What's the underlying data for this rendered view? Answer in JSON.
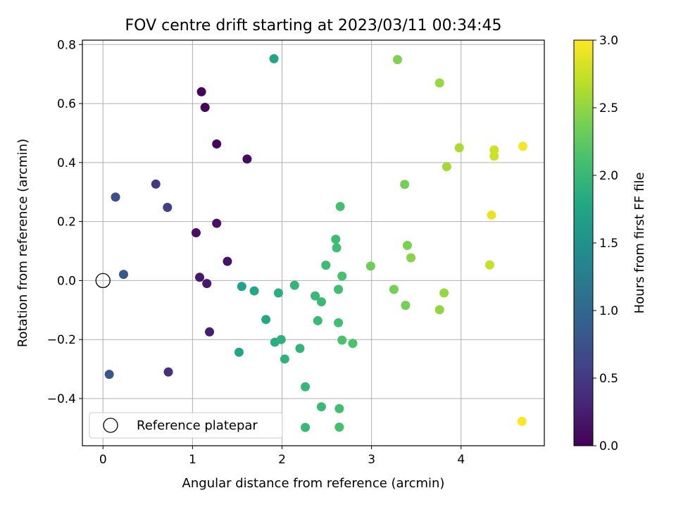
{
  "chart_data": {
    "type": "scatter",
    "title": "FOV centre drift starting at 2023/03/11 00:34:45",
    "xlabel": "Angular distance from reference (arcmin)",
    "ylabel": "Rotation from reference (arcmin)",
    "xlim": [
      -0.23,
      4.93
    ],
    "ylim": [
      -0.56,
      0.815
    ],
    "xticks": [
      0,
      1,
      2,
      3,
      4
    ],
    "xtick_labels": [
      "0",
      "1",
      "2",
      "3",
      "4"
    ],
    "yticks": [
      -0.4,
      -0.2,
      0.0,
      0.2,
      0.4,
      0.6,
      0.8
    ],
    "ytick_labels": [
      "−0.4",
      "−0.2",
      "0.0",
      "0.2",
      "0.4",
      "0.6",
      "0.8"
    ],
    "grid": true,
    "colormap": "viridis",
    "colorbar": {
      "label": "Hours from first FF file",
      "range": [
        0.0,
        3.0
      ],
      "ticks": [
        0.0,
        0.5,
        1.0,
        1.5,
        2.0,
        2.5,
        3.0
      ],
      "tick_labels": [
        "0.0",
        "0.5",
        "1.0",
        "1.5",
        "2.0",
        "2.5",
        "3.0"
      ]
    },
    "legend": {
      "location": "lower-left",
      "entries": [
        {
          "label": "Reference platepar",
          "marker": "open-circle"
        }
      ]
    },
    "reference_point": {
      "x": 0.0,
      "y": 0.0
    },
    "points": [
      {
        "x": 1.1,
        "y": 0.64,
        "hours": 0.02
      },
      {
        "x": 1.14,
        "y": 0.587,
        "hours": 0.04
      },
      {
        "x": 1.27,
        "y": 0.463,
        "hours": 0.07
      },
      {
        "x": 1.61,
        "y": 0.412,
        "hours": 0.1
      },
      {
        "x": 1.04,
        "y": 0.162,
        "hours": 0.12
      },
      {
        "x": 1.27,
        "y": 0.194,
        "hours": 0.14
      },
      {
        "x": 1.39,
        "y": 0.065,
        "hours": 0.16
      },
      {
        "x": 1.08,
        "y": 0.011,
        "hours": 0.19
      },
      {
        "x": 1.16,
        "y": -0.01,
        "hours": 0.21
      },
      {
        "x": 1.19,
        "y": -0.174,
        "hours": 0.24
      },
      {
        "x": 0.73,
        "y": -0.31,
        "hours": 0.4
      },
      {
        "x": 0.59,
        "y": 0.327,
        "hours": 0.5
      },
      {
        "x": 0.72,
        "y": 0.248,
        "hours": 0.55
      },
      {
        "x": 0.14,
        "y": 0.283,
        "hours": 0.72
      },
      {
        "x": 0.23,
        "y": 0.021,
        "hours": 0.82
      },
      {
        "x": 0.07,
        "y": -0.318,
        "hours": 0.8
      },
      {
        "x": 1.91,
        "y": 0.752,
        "hours": 1.75
      },
      {
        "x": 1.55,
        "y": -0.02,
        "hours": 1.72
      },
      {
        "x": 1.69,
        "y": -0.035,
        "hours": 1.78
      },
      {
        "x": 1.52,
        "y": -0.243,
        "hours": 1.76
      },
      {
        "x": 1.82,
        "y": -0.132,
        "hours": 1.82
      },
      {
        "x": 1.92,
        "y": -0.209,
        "hours": 1.85
      },
      {
        "x": 1.96,
        "y": -0.042,
        "hours": 1.88
      },
      {
        "x": 1.99,
        "y": -0.2,
        "hours": 1.9
      },
      {
        "x": 2.03,
        "y": -0.266,
        "hours": 1.92
      },
      {
        "x": 2.14,
        "y": -0.016,
        "hours": 1.95
      },
      {
        "x": 2.2,
        "y": -0.23,
        "hours": 1.96
      },
      {
        "x": 2.26,
        "y": -0.36,
        "hours": 1.98
      },
      {
        "x": 2.26,
        "y": -0.498,
        "hours": 2.0
      },
      {
        "x": 2.37,
        "y": -0.052,
        "hours": 2.0
      },
      {
        "x": 2.4,
        "y": -0.136,
        "hours": 2.02
      },
      {
        "x": 2.44,
        "y": -0.072,
        "hours": 2.02
      },
      {
        "x": 2.44,
        "y": -0.428,
        "hours": 2.03
      },
      {
        "x": 2.49,
        "y": 0.052,
        "hours": 2.04
      },
      {
        "x": 2.6,
        "y": 0.14,
        "hours": 2.05
      },
      {
        "x": 2.61,
        "y": 0.111,
        "hours": 2.06
      },
      {
        "x": 2.63,
        "y": -0.03,
        "hours": 2.07
      },
      {
        "x": 2.63,
        "y": -0.143,
        "hours": 2.08
      },
      {
        "x": 2.64,
        "y": -0.434,
        "hours": 2.09
      },
      {
        "x": 2.64,
        "y": -0.497,
        "hours": 2.1
      },
      {
        "x": 2.65,
        "y": 0.251,
        "hours": 2.11
      },
      {
        "x": 2.67,
        "y": 0.015,
        "hours": 2.12
      },
      {
        "x": 2.67,
        "y": -0.202,
        "hours": 2.13
      },
      {
        "x": 2.79,
        "y": -0.213,
        "hours": 2.14
      },
      {
        "x": 2.99,
        "y": 0.049,
        "hours": 2.33
      },
      {
        "x": 3.25,
        "y": -0.03,
        "hours": 2.38
      },
      {
        "x": 3.29,
        "y": 0.749,
        "hours": 2.42
      },
      {
        "x": 3.37,
        "y": 0.326,
        "hours": 2.36
      },
      {
        "x": 3.38,
        "y": -0.084,
        "hours": 2.37
      },
      {
        "x": 3.4,
        "y": 0.119,
        "hours": 2.4
      },
      {
        "x": 3.44,
        "y": 0.077,
        "hours": 2.46
      },
      {
        "x": 3.76,
        "y": 0.67,
        "hours": 2.52
      },
      {
        "x": 3.76,
        "y": -0.099,
        "hours": 2.5
      },
      {
        "x": 3.81,
        "y": -0.042,
        "hours": 2.52
      },
      {
        "x": 3.84,
        "y": 0.386,
        "hours": 2.58
      },
      {
        "x": 3.98,
        "y": 0.45,
        "hours": 2.62
      },
      {
        "x": 4.32,
        "y": 0.053,
        "hours": 2.74
      },
      {
        "x": 4.34,
        "y": 0.222,
        "hours": 2.9
      },
      {
        "x": 4.37,
        "y": 0.443,
        "hours": 2.78
      },
      {
        "x": 4.37,
        "y": 0.422,
        "hours": 2.76
      },
      {
        "x": 4.69,
        "y": 0.455,
        "hours": 2.95
      },
      {
        "x": 4.68,
        "y": -0.477,
        "hours": 2.98
      }
    ]
  }
}
